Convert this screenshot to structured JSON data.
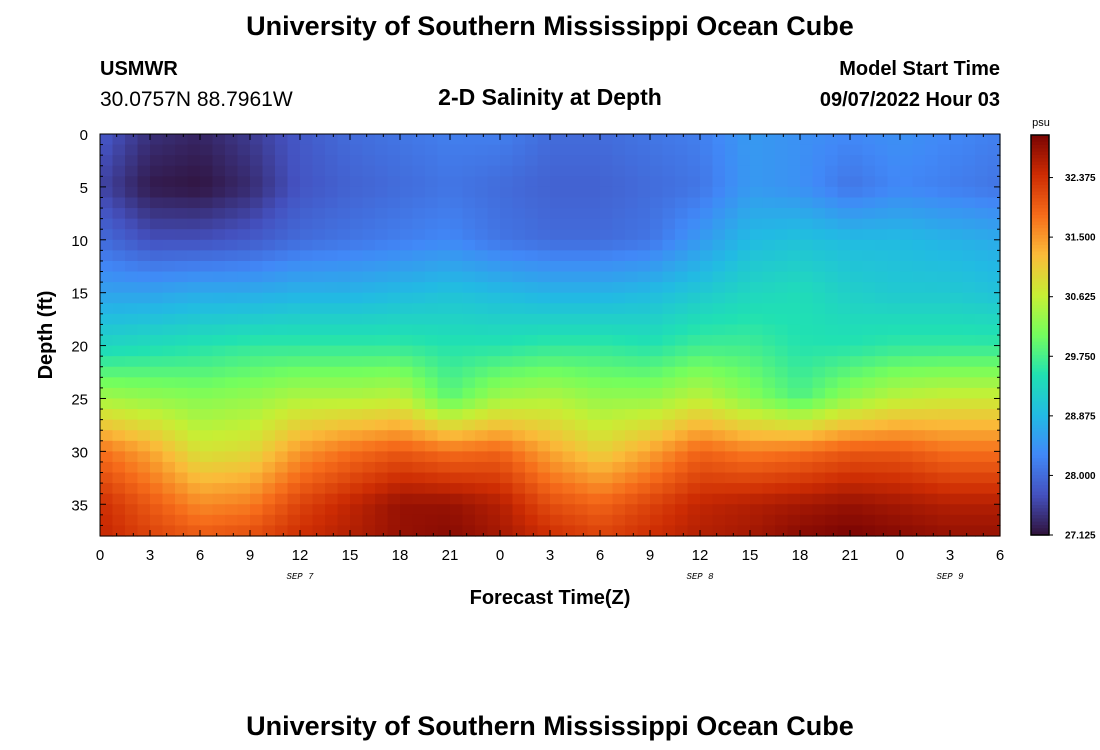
{
  "page": {
    "title": "University of Southern Mississippi Ocean Cube",
    "footer_title": "University of Southern Mississippi Ocean Cube",
    "station": "USMWR",
    "coords": "30.0757N  88.7961W",
    "plot_title": "2-D Salinity at Depth",
    "model_start_label": "Model Start Time",
    "model_start_value": "09/07/2022 Hour 03"
  },
  "chart_data": {
    "type": "heatmap",
    "title": "2-D Salinity at Depth",
    "xlabel": "Forecast Time(Z)",
    "ylabel": "Depth (ft)",
    "x_ticks": [
      "0",
      "3",
      "6",
      "9",
      "12",
      "15",
      "18",
      "21",
      "0",
      "3",
      "6",
      "9",
      "12",
      "15",
      "18",
      "21",
      "0",
      "3",
      "6"
    ],
    "date_labels": [
      {
        "label": "SEP 7",
        "tick_index": 4
      },
      {
        "label": "SEP 8",
        "tick_index": 12
      },
      {
        "label": "SEP 9",
        "tick_index": 17
      }
    ],
    "y_ticks": [
      0,
      5,
      10,
      15,
      20,
      25,
      30,
      35
    ],
    "ylim": [
      0,
      38
    ],
    "xlim_hours": [
      0,
      54
    ],
    "colorbar": {
      "unit": "psu",
      "range": [
        27.125,
        33.0
      ],
      "tick_labels": [
        "32.375",
        "31.500",
        "30.625",
        "29.750",
        "28.875",
        "28.000",
        "27.125"
      ],
      "tick_values": [
        32.375,
        31.5,
        30.625,
        29.75,
        28.875,
        28.0,
        27.125
      ],
      "colormap": "turbo"
    },
    "isolines": {
      "depth_ft": [
        0,
        5,
        10,
        15,
        20,
        25,
        30,
        35,
        38
      ],
      "series": [
        {
          "hour": 0,
          "salinity": [
            27.8,
            27.6,
            28.0,
            28.6,
            29.3,
            30.4,
            31.8,
            32.4,
            32.5
          ]
        },
        {
          "hour": 3,
          "salinity": [
            27.4,
            27.2,
            27.7,
            28.6,
            29.4,
            30.3,
            31.4,
            32.0,
            32.2
          ]
        },
        {
          "hour": 6,
          "salinity": [
            27.3,
            27.15,
            27.7,
            28.7,
            29.5,
            30.2,
            30.8,
            31.6,
            32.0
          ]
        },
        {
          "hour": 9,
          "salinity": [
            27.5,
            27.35,
            27.8,
            28.7,
            29.6,
            30.3,
            30.9,
            31.7,
            32.1
          ]
        },
        {
          "hour": 12,
          "salinity": [
            27.8,
            27.75,
            28.0,
            28.8,
            29.6,
            30.5,
            31.5,
            32.2,
            32.4
          ]
        },
        {
          "hour": 15,
          "salinity": [
            28.0,
            27.9,
            28.1,
            28.8,
            29.6,
            30.5,
            31.8,
            32.5,
            32.6
          ]
        },
        {
          "hour": 18,
          "salinity": [
            28.1,
            28.0,
            28.2,
            28.9,
            29.6,
            30.6,
            32.0,
            32.8,
            32.8
          ]
        },
        {
          "hour": 21,
          "salinity": [
            28.2,
            28.1,
            28.3,
            29.0,
            29.5,
            29.9,
            31.8,
            32.8,
            32.9
          ]
        },
        {
          "hour": 24,
          "salinity": [
            28.2,
            28.0,
            28.1,
            28.9,
            29.5,
            30.4,
            31.9,
            32.6,
            32.7
          ]
        },
        {
          "hour": 27,
          "salinity": [
            28.0,
            27.9,
            28.0,
            28.8,
            29.6,
            30.5,
            31.4,
            32.1,
            32.4
          ]
        },
        {
          "hour": 30,
          "salinity": [
            28.0,
            27.9,
            28.0,
            28.8,
            29.6,
            30.3,
            31.0,
            31.9,
            32.2
          ]
        },
        {
          "hour": 33,
          "salinity": [
            28.1,
            28.0,
            28.1,
            28.9,
            29.5,
            30.3,
            31.4,
            32.2,
            32.4
          ]
        },
        {
          "hour": 36,
          "salinity": [
            28.2,
            28.1,
            28.5,
            29.1,
            29.7,
            30.6,
            31.9,
            32.5,
            32.6
          ]
        },
        {
          "hour": 39,
          "salinity": [
            28.5,
            28.5,
            28.9,
            29.3,
            29.7,
            30.2,
            31.7,
            32.6,
            32.7
          ]
        },
        {
          "hour": 42,
          "salinity": [
            28.4,
            28.4,
            29.0,
            29.4,
            29.5,
            29.8,
            31.8,
            32.7,
            32.9
          ]
        },
        {
          "hour": 45,
          "salinity": [
            28.3,
            28.1,
            28.9,
            29.2,
            29.5,
            30.3,
            32.0,
            32.8,
            33.0
          ]
        },
        {
          "hour": 48,
          "salinity": [
            28.4,
            28.3,
            28.9,
            29.1,
            29.6,
            30.6,
            32.0,
            32.7,
            32.9
          ]
        },
        {
          "hour": 51,
          "salinity": [
            28.3,
            28.2,
            28.8,
            29.1,
            29.6,
            30.7,
            31.8,
            32.6,
            32.8
          ]
        },
        {
          "hour": 54,
          "salinity": [
            28.2,
            28.1,
            28.7,
            29.0,
            29.6,
            30.7,
            31.8,
            32.6,
            32.8
          ]
        }
      ]
    }
  }
}
